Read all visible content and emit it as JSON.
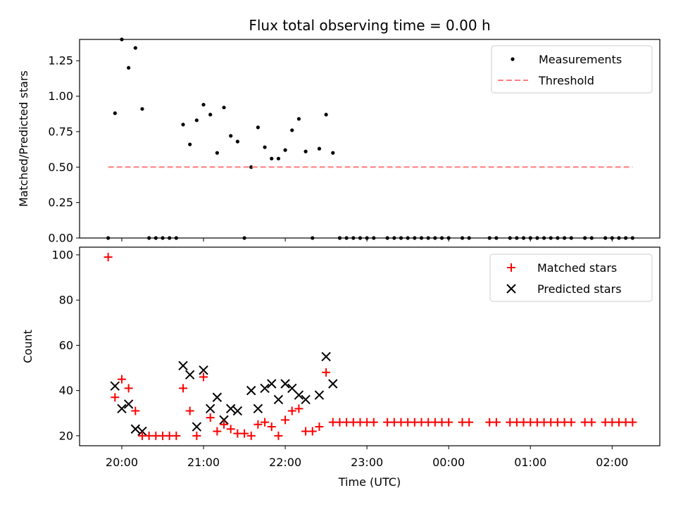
{
  "title": "Flux total observing time = 0.00 h",
  "top_legend": {
    "measurements_label": "Measurements",
    "threshold_label": "Threshold"
  },
  "bottom_legend": {
    "matched_label": "Matched stars",
    "predicted_label": "Predicted stars"
  },
  "colors": {
    "matched": "#ff0000",
    "threshold": "#ff7f7f",
    "predicted": "#000000",
    "measurements": "#000000"
  },
  "chart_data": [
    {
      "type": "scatter",
      "ylabel": "Matched/Predicted stars",
      "ylim": [
        0,
        1.4
      ],
      "yticks": [
        0.0,
        0.25,
        0.5,
        0.75,
        1.0,
        1.25
      ],
      "ytick_labels": [
        "0.00",
        "0.25",
        "0.50",
        "0.75",
        "1.00",
        "1.25"
      ],
      "xlim": [
        "19:29",
        "02:35"
      ],
      "xticks": [
        "20:00",
        "21:00",
        "22:00",
        "23:00",
        "00:00",
        "01:00",
        "02:00"
      ],
      "grid": false,
      "legend_position": "top-right",
      "series": [
        {
          "name": "Measurements",
          "marker": "dot",
          "x": [
            "19:50",
            "19:55",
            "20:00",
            "20:05",
            "20:10",
            "20:15",
            "20:20",
            "20:25",
            "20:30",
            "20:35",
            "20:40",
            "20:45",
            "20:50",
            "20:55",
            "21:00",
            "21:05",
            "21:10",
            "21:15",
            "21:20",
            "21:25",
            "21:30",
            "21:35",
            "21:40",
            "21:45",
            "21:50",
            "21:55",
            "22:00",
            "22:05",
            "22:10",
            "22:15",
            "22:20",
            "22:25",
            "22:30",
            "22:35",
            "22:40",
            "22:45",
            "22:50",
            "22:55",
            "23:00",
            "23:05",
            "23:15",
            "23:20",
            "23:25",
            "23:30",
            "23:35",
            "23:40",
            "23:45",
            "23:50",
            "23:55",
            "00:00",
            "00:10",
            "00:15",
            "00:30",
            "00:35",
            "00:45",
            "00:50",
            "00:55",
            "01:00",
            "01:05",
            "01:10",
            "01:15",
            "01:20",
            "01:25",
            "01:30",
            "01:40",
            "01:45",
            "01:55",
            "02:00",
            "02:05",
            "02:10",
            "02:15"
          ],
          "y": [
            0,
            0.88,
            1.4,
            1.2,
            1.34,
            0.91,
            0,
            0,
            0,
            0,
            0,
            0.8,
            0.66,
            0.83,
            0.94,
            0.87,
            0.6,
            0.92,
            0.72,
            0.68,
            0,
            0.5,
            0.78,
            0.64,
            0.56,
            0.56,
            0.62,
            0.76,
            0.84,
            0.61,
            0,
            0.63,
            0.87,
            0.6,
            0,
            0,
            0,
            0,
            0,
            0,
            0,
            0,
            0,
            0,
            0,
            0,
            0,
            0,
            0,
            0,
            0,
            0,
            0,
            0,
            0,
            0,
            0,
            0,
            0,
            0,
            0,
            0,
            0,
            0,
            0,
            0,
            0,
            0,
            0,
            0,
            0
          ]
        },
        {
          "name": "Threshold",
          "line": "dashed",
          "x": [
            "19:50",
            "02:15"
          ],
          "y": [
            0.5,
            0.5
          ]
        }
      ]
    },
    {
      "type": "scatter",
      "xlabel": "Time (UTC)",
      "ylabel": "Count",
      "ylim": [
        15.6,
        103.4
      ],
      "yticks": [
        20,
        40,
        60,
        80,
        100
      ],
      "xlim": [
        "19:29",
        "02:35"
      ],
      "xticks": [
        "20:00",
        "21:00",
        "22:00",
        "23:00",
        "00:00",
        "01:00",
        "02:00"
      ],
      "grid": false,
      "legend_position": "top-right",
      "series": [
        {
          "name": "Matched stars",
          "marker": "plus",
          "x": [
            "19:50",
            "19:55",
            "20:00",
            "20:05",
            "20:10",
            "20:15",
            "20:20",
            "20:25",
            "20:30",
            "20:35",
            "20:40",
            "20:45",
            "20:50",
            "20:55",
            "21:00",
            "21:05",
            "21:10",
            "21:15",
            "21:20",
            "21:25",
            "21:30",
            "21:35",
            "21:40",
            "21:45",
            "21:50",
            "21:55",
            "22:00",
            "22:05",
            "22:10",
            "22:15",
            "22:20",
            "22:25",
            "22:30",
            "22:35",
            "22:40",
            "22:45",
            "22:50",
            "22:55",
            "23:00",
            "23:05",
            "23:15",
            "23:20",
            "23:25",
            "23:30",
            "23:35",
            "23:40",
            "23:45",
            "23:50",
            "23:55",
            "00:00",
            "00:10",
            "00:15",
            "00:30",
            "00:35",
            "00:45",
            "00:50",
            "00:55",
            "01:00",
            "01:05",
            "01:10",
            "01:15",
            "01:20",
            "01:25",
            "01:30",
            "01:40",
            "01:45",
            "01:55",
            "02:00",
            "02:05",
            "02:10",
            "02:15"
          ],
          "y": [
            99,
            37,
            45,
            41,
            31,
            20,
            20,
            20,
            20,
            20,
            20,
            41,
            31,
            20,
            46,
            28,
            22,
            25,
            23,
            21,
            21,
            20,
            25,
            26,
            24,
            20,
            27,
            31,
            32,
            22,
            22,
            24,
            48,
            26,
            26,
            26,
            26,
            26,
            26,
            26,
            26,
            26,
            26,
            26,
            26,
            26,
            26,
            26,
            26,
            26,
            26,
            26,
            26,
            26,
            26,
            26,
            26,
            26,
            26,
            26,
            26,
            26,
            26,
            26,
            26,
            26,
            26,
            26,
            26,
            26,
            26
          ]
        },
        {
          "name": "Predicted stars",
          "marker": "x",
          "x": [
            "19:55",
            "20:00",
            "20:05",
            "20:10",
            "20:15",
            "20:45",
            "20:50",
            "20:55",
            "21:00",
            "21:05",
            "21:10",
            "21:15",
            "21:20",
            "21:25",
            "21:35",
            "21:40",
            "21:45",
            "21:50",
            "21:55",
            "22:00",
            "22:05",
            "22:10",
            "22:15",
            "22:25",
            "22:30",
            "22:35"
          ],
          "y": [
            42,
            32,
            34,
            23,
            22,
            51,
            47,
            24,
            49,
            32,
            37,
            27,
            32,
            31,
            40,
            32,
            41,
            43,
            36,
            43,
            41,
            38,
            36,
            38,
            55,
            43
          ]
        }
      ]
    }
  ]
}
